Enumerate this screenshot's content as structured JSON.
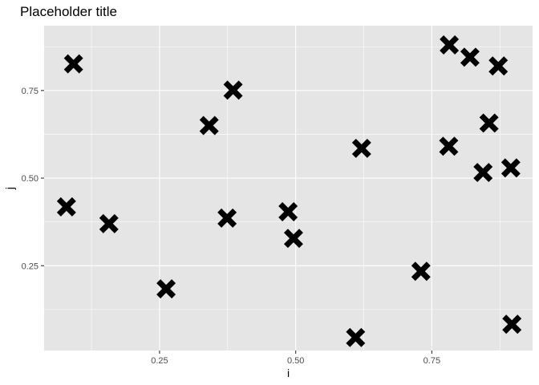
{
  "chart_data": {
    "type": "scatter",
    "title": "Placeholder title",
    "xlabel": "i",
    "ylabel": "j",
    "xlim": [
      0.038,
      0.935
    ],
    "ylim": [
      0.008,
      0.935
    ],
    "x_ticks": [
      0.25,
      0.5,
      0.75
    ],
    "x_tick_labels": [
      "0.25",
      "0.50",
      "0.75"
    ],
    "x_minor": [
      0.125,
      0.375,
      0.625,
      0.875
    ],
    "y_ticks": [
      0.25,
      0.5,
      0.75
    ],
    "y_tick_labels": [
      "0.25",
      "0.50",
      "0.75"
    ],
    "y_minor": [
      0.125,
      0.375,
      0.625,
      0.875
    ],
    "grid": true,
    "marker": "x",
    "marker_color": "#000000",
    "panel_background": "#e5e5e5",
    "points": [
      {
        "x": 0.092,
        "y": 0.826
      },
      {
        "x": 0.079,
        "y": 0.418
      },
      {
        "x": 0.157,
        "y": 0.37
      },
      {
        "x": 0.262,
        "y": 0.184
      },
      {
        "x": 0.341,
        "y": 0.65
      },
      {
        "x": 0.385,
        "y": 0.751
      },
      {
        "x": 0.374,
        "y": 0.386
      },
      {
        "x": 0.486,
        "y": 0.404
      },
      {
        "x": 0.496,
        "y": 0.328
      },
      {
        "x": 0.61,
        "y": 0.045
      },
      {
        "x": 0.621,
        "y": 0.585
      },
      {
        "x": 0.73,
        "y": 0.234
      },
      {
        "x": 0.782,
        "y": 0.88
      },
      {
        "x": 0.82,
        "y": 0.845
      },
      {
        "x": 0.872,
        "y": 0.82
      },
      {
        "x": 0.781,
        "y": 0.591
      },
      {
        "x": 0.855,
        "y": 0.657
      },
      {
        "x": 0.844,
        "y": 0.516
      },
      {
        "x": 0.895,
        "y": 0.529
      },
      {
        "x": 0.897,
        "y": 0.083
      }
    ]
  }
}
